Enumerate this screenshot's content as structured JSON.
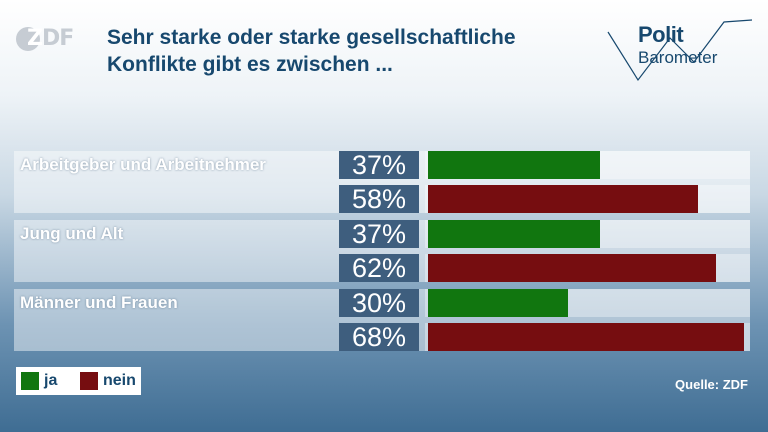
{
  "header": {
    "logo_text_prefix": "Z",
    "logo_text_rest": "DF",
    "title_line1": "Sehr starke oder starke gesellschaftliche",
    "title_line2": "Konflikte gibt es zwischen ...",
    "brand_line1": "Polit",
    "brand_line2": "Barometer"
  },
  "colors": {
    "ja": "#11760f",
    "nein": "#760d10",
    "pct_box": "#3e5e7e"
  },
  "chart_data": {
    "type": "bar",
    "orientation": "horizontal",
    "title": "Sehr starke oder starke gesellschaftliche Konflikte gibt es zwischen ...",
    "categories": [
      "Arbeitgeber und Arbeitnehmer",
      "Jung und Alt",
      "Männer und Frauen"
    ],
    "series": [
      {
        "name": "ja",
        "values": [
          37,
          37,
          30
        ],
        "labels": [
          "37%",
          "37%",
          "30%"
        ]
      },
      {
        "name": "nein",
        "values": [
          58,
          62,
          68
        ],
        "labels": [
          "58%",
          "62%",
          "68%"
        ]
      }
    ],
    "xlim": [
      0,
      100
    ],
    "legend": "bottom-left"
  },
  "legend": {
    "ja": "ja",
    "nein": "nein"
  },
  "footer": {
    "source": "Quelle: ZDF"
  }
}
